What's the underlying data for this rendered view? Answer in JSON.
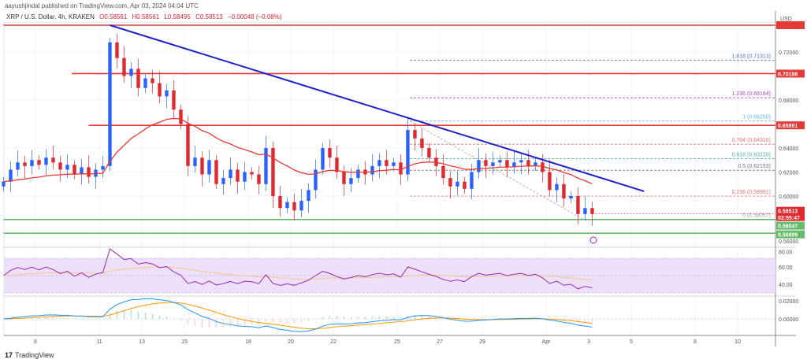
{
  "header": {
    "published": "aayushjindal published on TradingView.com, Apr 03, 2024 04:04 UTC",
    "symbol": "XRP / U.S. Dollar, 4h, KRAKEN",
    "open": "O0.58561",
    "high": "H0.58561",
    "low": "L0.58495",
    "close": "C0.58513",
    "change": "−0.00048 (−0.08%)"
  },
  "footer": {
    "brand": "TradingView",
    "logo_icon": "tradingview-logo-icon"
  },
  "colors": {
    "up": "#2962ff",
    "down": "#e0282e",
    "ma": "#e53935",
    "trend": "#1e22c8",
    "support": "#66bb6a",
    "resistance": "#e53935",
    "rsi": "#9c27b0",
    "rsi_band": "#ede0fb",
    "macd": "#2196f3",
    "signal": "#ff9800"
  },
  "chart_data": {
    "type": "candlestick",
    "currency_label": "USD",
    "interval": "4h",
    "ylim": [
      0.555,
      0.745
    ],
    "y_ticks": [
      "0.72000",
      "0.68000",
      "0.64000",
      "0.62000",
      "0.60000",
      "0.56000"
    ],
    "y_tick_values": [
      0.72,
      0.68,
      0.64,
      0.62,
      0.6,
      0.56
    ],
    "x_ticks": [
      "8",
      "11",
      "13",
      "15",
      "18",
      "20",
      "22",
      "25",
      "27",
      "29",
      "Apr",
      "3",
      "5",
      "8",
      "10"
    ],
    "x_tick_days": [
      8,
      11,
      13,
      15,
      18,
      20,
      22,
      25,
      27,
      29,
      32,
      34,
      36,
      39,
      41
    ],
    "series_start_day": 6.5,
    "series_step_days": 0.3333,
    "closes": [
      0.612,
      0.622,
      0.628,
      0.625,
      0.63,
      0.626,
      0.632,
      0.628,
      0.622,
      0.626,
      0.618,
      0.624,
      0.616,
      0.622,
      0.625,
      0.728,
      0.715,
      0.7,
      0.706,
      0.69,
      0.698,
      0.694,
      0.683,
      0.688,
      0.672,
      0.66,
      0.625,
      0.632,
      0.618,
      0.63,
      0.61,
      0.615,
      0.622,
      0.612,
      0.62,
      0.618,
      0.61,
      0.64,
      0.6,
      0.59,
      0.595,
      0.588,
      0.596,
      0.605,
      0.622,
      0.64,
      0.632,
      0.62,
      0.61,
      0.615,
      0.622,
      0.618,
      0.625,
      0.63,
      0.625,
      0.628,
      0.618,
      0.655,
      0.648,
      0.64,
      0.632,
      0.625,
      0.615,
      0.608,
      0.612,
      0.606,
      0.62,
      0.63,
      0.625,
      0.628,
      0.63,
      0.624,
      0.628,
      0.63,
      0.625,
      0.628,
      0.62,
      0.605,
      0.61,
      0.598,
      0.6,
      0.585,
      0.59,
      0.58513
    ],
    "horizontal_levels": [
      {
        "price": 0.7423,
        "color": "resistance",
        "from_day": 6.5,
        "label": ""
      },
      {
        "price": 0.70198,
        "color": "resistance",
        "from_day": 9.7,
        "label": "0.70198"
      },
      {
        "price": 0.65891,
        "color": "resistance",
        "from_day": 10.5,
        "label": "0.65891"
      },
      {
        "price": 0.58047,
        "color": "support",
        "from_day": 6.5,
        "label": "0.58047"
      },
      {
        "price": 0.56909,
        "color": "support",
        "from_day": 6.5,
        "label": "0.56909"
      }
    ],
    "last_price": {
      "label": "0.58513",
      "countdown": "03:55:47"
    },
    "trendline": [
      {
        "day": 11.5,
        "price": 0.7423
      },
      {
        "day": 36.6,
        "price": 0.604
      }
    ],
    "fib_levels": [
      {
        "label": "1.618 (0.71313)",
        "price": 0.71313,
        "color": "#5c6bc0"
      },
      {
        "label": "1.236 (0.68184)",
        "price": 0.68184,
        "color": "#ab47bc"
      },
      {
        "label": "1 (0.66250)",
        "price": 0.6625,
        "color": "#64b5f6"
      },
      {
        "label": "0.764 (0.64316)",
        "price": 0.64316,
        "color": "#e57373"
      },
      {
        "label": "0.618 (0.63120)",
        "price": 0.6312,
        "color": "#4db6ac"
      },
      {
        "label": "0.5 (0.62153)",
        "price": 0.62153,
        "color": "#757575"
      },
      {
        "label": "0.236 (0.59991)",
        "price": 0.59991,
        "color": "#e57373"
      },
      {
        "label": "0 (0.58057)",
        "price": 0.58057,
        "color": "#9e9e9e"
      }
    ],
    "rsi": {
      "ticks": [
        "80.00",
        "60.00",
        "40.00"
      ],
      "tick_values": [
        80,
        60,
        40
      ],
      "band": [
        30,
        70
      ]
    },
    "macd": {
      "ticks": [
        "0.02000",
        "0.00000"
      ],
      "tick_values": [
        0.02,
        0
      ]
    }
  }
}
